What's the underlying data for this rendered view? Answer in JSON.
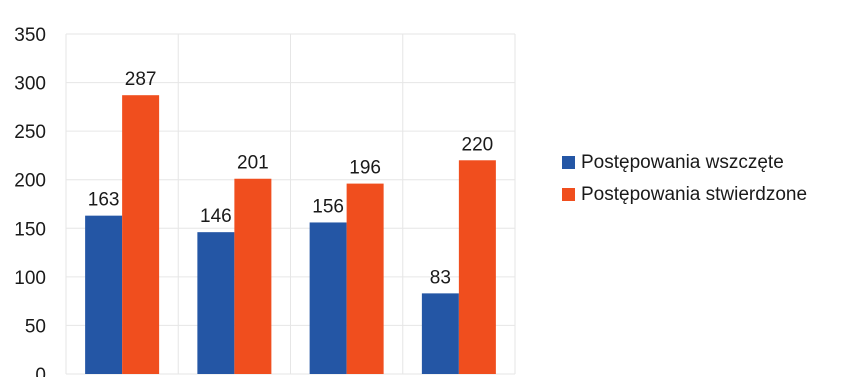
{
  "chart_data": {
    "type": "bar",
    "title": "",
    "xlabel": "",
    "ylabel": "",
    "categories": [
      "",
      "",
      "",
      ""
    ],
    "ylim": [
      0,
      350
    ],
    "yticks": [
      0,
      50,
      100,
      150,
      200,
      250,
      300,
      350
    ],
    "grid": true,
    "legend_position": "right",
    "series": [
      {
        "name": "Postępowania wszczęte",
        "color": "#2456a5",
        "values": [
          163,
          146,
          156,
          83
        ]
      },
      {
        "name": "Postępowania stwierdzone",
        "color": "#f04e1e",
        "values": [
          287,
          201,
          196,
          220
        ]
      }
    ]
  }
}
